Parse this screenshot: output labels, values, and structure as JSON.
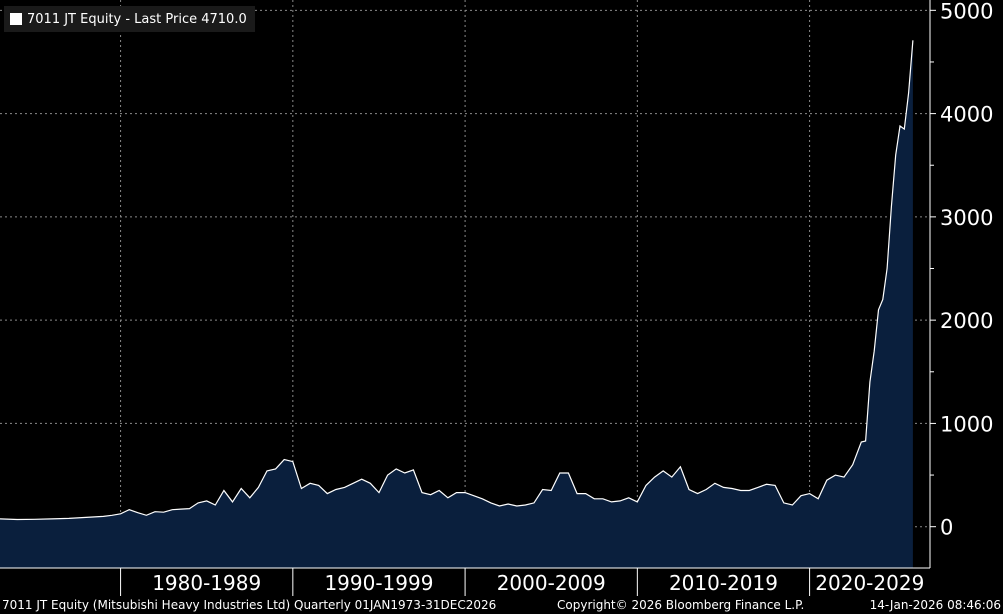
{
  "legend": {
    "label": "7011 JT Equity - Last Price 4710.0",
    "color": "#ffffff"
  },
  "footer": {
    "left": "7011 JT Equity (Mitsubishi Heavy Industries Ltd) Quarterly 01JAN1973-31DEC2026",
    "center": "Copyright© 2026 Bloomberg Finance L.P.",
    "right": "14-Jan-2026 08:46:06"
  },
  "colors": {
    "background": "#000000",
    "line": "#ffffff",
    "area_fill": "#0a1f3d",
    "grid": "#8a8a8a",
    "text": "#ffffff"
  },
  "chart_data": {
    "type": "area",
    "title": "",
    "xlabel": "",
    "ylabel": "",
    "frequency": "Quarterly",
    "x_range": [
      1973.0,
      2026.99
    ],
    "ylim": [
      -400,
      5100
    ],
    "y_axis_position": "right",
    "y_ticks": [
      0,
      1000,
      2000,
      3000,
      4000,
      5000
    ],
    "x_category_labels": [
      {
        "label": "1980-1989",
        "start": 1980,
        "end": 1990
      },
      {
        "label": "1990-1999",
        "start": 1990,
        "end": 2000
      },
      {
        "label": "2000-2009",
        "start": 2000,
        "end": 2010
      },
      {
        "label": "2010-2019",
        "start": 2010,
        "end": 2020
      },
      {
        "label": "2020-2029",
        "start": 2020,
        "end": 2030
      }
    ],
    "grid": true,
    "legend_position": "top-left",
    "series": [
      {
        "name": "7011 JT Equity - Last Price 4710.0",
        "x": [
          1973.0,
          1974.0,
          1975.0,
          1976.0,
          1977.0,
          1978.0,
          1979.0,
          1979.5,
          1980.0,
          1980.5,
          1981.0,
          1981.5,
          1982.0,
          1982.5,
          1983.0,
          1983.5,
          1984.0,
          1984.5,
          1985.0,
          1985.5,
          1986.0,
          1986.5,
          1987.0,
          1987.5,
          1988.0,
          1988.5,
          1989.0,
          1989.5,
          1990.0,
          1990.5,
          1991.0,
          1991.5,
          1992.0,
          1992.5,
          1993.0,
          1993.5,
          1994.0,
          1994.5,
          1995.0,
          1995.5,
          1996.0,
          1996.5,
          1997.0,
          1997.5,
          1998.0,
          1998.5,
          1999.0,
          1999.5,
          2000.0,
          2000.5,
          2001.0,
          2001.5,
          2002.0,
          2002.5,
          2003.0,
          2003.5,
          2004.0,
          2004.5,
          2005.0,
          2005.5,
          2006.0,
          2006.5,
          2007.0,
          2007.5,
          2008.0,
          2008.5,
          2009.0,
          2009.5,
          2010.0,
          2010.5,
          2011.0,
          2011.5,
          2012.0,
          2012.5,
          2013.0,
          2013.5,
          2014.0,
          2014.5,
          2015.0,
          2015.5,
          2016.0,
          2016.5,
          2017.0,
          2017.5,
          2018.0,
          2018.5,
          2019.0,
          2019.5,
          2020.0,
          2020.5,
          2021.0,
          2021.5,
          2022.0,
          2022.5,
          2023.0,
          2023.25,
          2023.5,
          2023.75,
          2024.0,
          2024.25,
          2024.5,
          2024.75,
          2025.0,
          2025.25,
          2025.5,
          2025.75,
          2026.0
        ],
        "y": [
          75,
          70,
          72,
          75,
          80,
          90,
          100,
          110,
          125,
          165,
          135,
          110,
          145,
          140,
          165,
          170,
          175,
          230,
          250,
          210,
          350,
          240,
          370,
          280,
          380,
          540,
          560,
          650,
          630,
          370,
          420,
          400,
          320,
          360,
          380,
          420,
          460,
          420,
          330,
          500,
          560,
          520,
          550,
          330,
          310,
          350,
          280,
          330,
          330,
          300,
          270,
          230,
          200,
          220,
          200,
          210,
          230,
          360,
          350,
          520,
          520,
          320,
          320,
          270,
          270,
          240,
          250,
          280,
          240,
          400,
          480,
          540,
          480,
          580,
          360,
          320,
          360,
          420,
          380,
          370,
          350,
          350,
          380,
          410,
          400,
          230,
          210,
          300,
          320,
          270,
          450,
          500,
          480,
          600,
          820,
          830,
          1400,
          1700,
          2100,
          2200,
          2500,
          3100,
          3600,
          3880,
          3850,
          4200,
          4710
        ]
      }
    ]
  }
}
